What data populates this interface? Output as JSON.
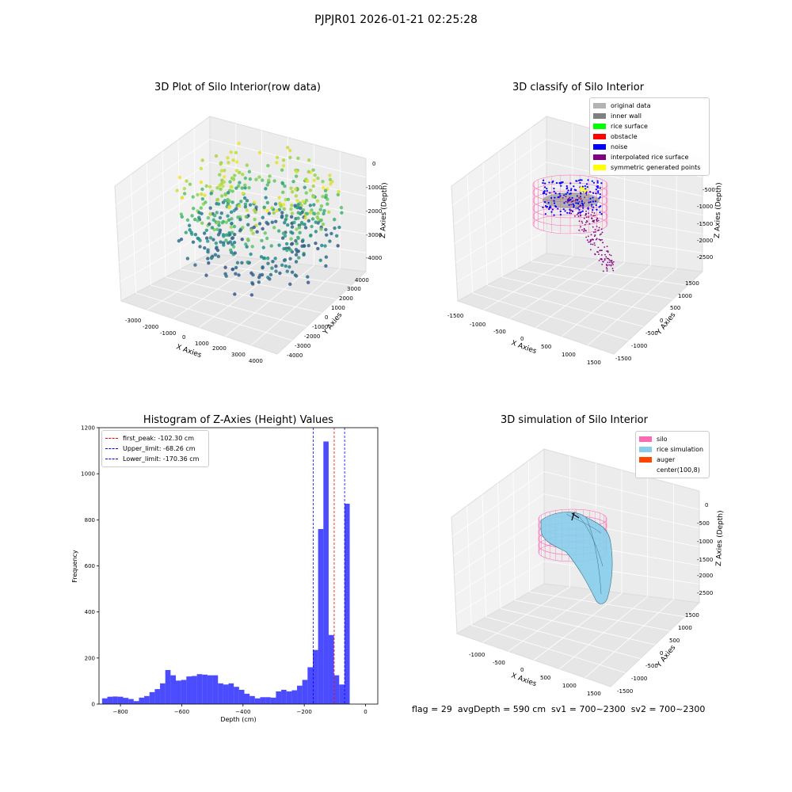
{
  "figure_title": "PJPJR01 2026-01-21 02:25:28",
  "status_line": "flag = 29  avgDepth = 590 cm  sv1 = 700~2300  sv2 = 700~2300",
  "panels": {
    "raw": {
      "title": "3D Plot of Silo Interior(row data)",
      "xlabel": "X Axies",
      "ylabel": "Y Axies",
      "zlabel": "Z Axies (Depth)",
      "xticks": [
        "-3000",
        "-2000",
        "-1000",
        "0",
        "1000",
        "2000",
        "3000",
        "4000"
      ],
      "yticks": [
        "-4000",
        "-3000",
        "-2000",
        "-1000",
        "0",
        "1000",
        "2000",
        "3000",
        "4000"
      ],
      "zticks": [
        "0",
        "-1000",
        "-2000",
        "-3000",
        "-4000"
      ]
    },
    "classify": {
      "title": "3D classify of Silo Interior",
      "xlabel": "X Axies",
      "ylabel": "Y Axies",
      "zlabel": "Z Axies (Depth)",
      "xticks": [
        "-1500",
        "-1000",
        "-500",
        "0",
        "500",
        "1000",
        "1500"
      ],
      "yticks": [
        "-1500",
        "-1000",
        "-500",
        "0",
        "500",
        "1000",
        "1500"
      ],
      "zticks": [
        "-500",
        "-1000",
        "-1500",
        "-2000",
        "-2500"
      ],
      "legend": [
        {
          "label": "original data",
          "color": "#b3b3b3"
        },
        {
          "label": "inner wall",
          "color": "#808080"
        },
        {
          "label": "rice surface",
          "color": "#00ff00"
        },
        {
          "label": "obstacle",
          "color": "#ff0000"
        },
        {
          "label": "noise",
          "color": "#0000ff"
        },
        {
          "label": "interpolated rice surface",
          "color": "#800080"
        },
        {
          "label": "symmetric generated points",
          "color": "#ffff00"
        }
      ]
    },
    "simulation": {
      "title": "3D simulation of Silo Interior",
      "xlabel": "X Axies",
      "ylabel": "Y Axies",
      "zlabel": "Z Axies (Depth)",
      "xticks": [
        "-1000",
        "-500",
        "0",
        "500",
        "1000",
        "1500"
      ],
      "yticks": [
        "-1500",
        "-1000",
        "-500",
        "0",
        "500",
        "1000",
        "1500"
      ],
      "zticks": [
        "0",
        "-500",
        "-1000",
        "-1500",
        "-2000",
        "-2500"
      ],
      "legend": [
        {
          "label": "silo",
          "color": "#ff69b4"
        },
        {
          "label": "rice simulation",
          "color": "#87ceeb"
        },
        {
          "label": "auger",
          "color": "#ff4500"
        },
        {
          "label": "center(100,8)",
          "color": ""
        }
      ]
    }
  },
  "chart_data": {
    "type": "bar",
    "title": "Histogram of Z-Axies (Height) Values",
    "xlabel": "Depth (cm)",
    "ylabel": "Frequency",
    "xlim": [
      -870,
      40
    ],
    "ylim": [
      0,
      1200
    ],
    "xticks": [
      -800,
      -600,
      -400,
      -200,
      0
    ],
    "yticks": [
      0,
      200,
      400,
      600,
      800,
      1000,
      1200
    ],
    "bin_start": -860,
    "bin_width": 17.2,
    "values": [
      25,
      32,
      33,
      32,
      27,
      22,
      13,
      28,
      35,
      52,
      65,
      90,
      148,
      125,
      102,
      105,
      120,
      122,
      130,
      128,
      125,
      125,
      90,
      85,
      90,
      75,
      62,
      45,
      35,
      25,
      30,
      30,
      28,
      55,
      62,
      55,
      60,
      80,
      105,
      160,
      235,
      760,
      1140,
      300,
      125,
      85,
      870
    ],
    "bar_color": "#0000ff",
    "lines": [
      {
        "label": "first_peak: -102.30 cm",
        "x": -102.3,
        "color": "#ff0000"
      },
      {
        "label": "Upper_limit: -68.26 cm",
        "x": -68.26,
        "color": "#0000ff"
      },
      {
        "label": "Lower_limit: -170.36 cm",
        "x": -170.36,
        "color": "#0000ff"
      }
    ]
  }
}
